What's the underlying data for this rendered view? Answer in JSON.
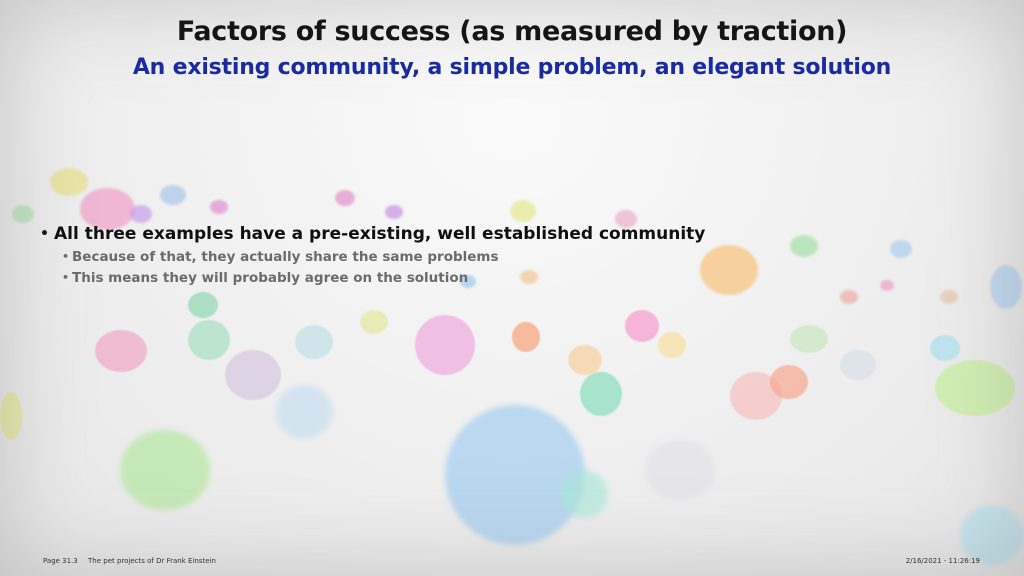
{
  "slide": {
    "title": "Factors of success (as measured by traction)",
    "subtitle": "An existing community, a simple problem, an elegant solution",
    "bullets": [
      {
        "text": "All three examples have a pre-existing, well established community",
        "sub": [
          "Because of that, they actually share the same problems",
          "This means they will probably agree on the solution"
        ]
      }
    ]
  },
  "footer": {
    "page": "Page 31.3",
    "presentation": "The pet projects of Dr Frank Einstein",
    "datetime": "2/16/2021 - 11:26:19"
  },
  "colors": {
    "title": "#151515",
    "subtitle": "#1a2aa0",
    "bullet_main": "#101010",
    "bullet_sub": "#6b6b6b"
  }
}
